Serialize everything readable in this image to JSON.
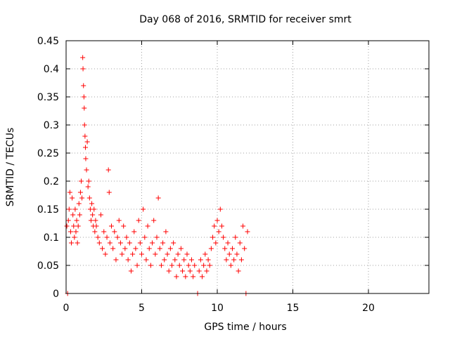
{
  "chart_data": {
    "type": "scatter",
    "title": "Day 068 of 2016, SRMTID for receiver smrt",
    "xlabel": "GPS time / hours",
    "ylabel": "SRMTID / TECUs",
    "xlim": [
      0,
      24
    ],
    "ylim": [
      0,
      0.45
    ],
    "xticks": [
      0,
      5,
      10,
      15,
      20
    ],
    "yticks": [
      0,
      0.05,
      0.1,
      0.15,
      0.2,
      0.25,
      0.3,
      0.35,
      0.4,
      0.45
    ],
    "xtick_labels": [
      "0",
      "5",
      "10",
      "15",
      "20"
    ],
    "ytick_labels": [
      "0",
      "0.05",
      "0.1",
      "0.15",
      "0.2",
      "0.25",
      "0.3",
      "0.35",
      "0.4",
      "0.45"
    ],
    "grid": true,
    "marker": "plus",
    "color": "#ff0000",
    "series": [
      {
        "name": "SRMTID",
        "points": [
          [
            0.05,
            0.12
          ],
          [
            0.1,
            0.0
          ],
          [
            0.15,
            0.13
          ],
          [
            0.2,
            0.15
          ],
          [
            0.25,
            0.18
          ],
          [
            0.3,
            0.11
          ],
          [
            0.35,
            0.09
          ],
          [
            0.4,
            0.17
          ],
          [
            0.45,
            0.14
          ],
          [
            0.5,
            0.12
          ],
          [
            0.55,
            0.1
          ],
          [
            0.6,
            0.15
          ],
          [
            0.65,
            0.11
          ],
          [
            0.7,
            0.13
          ],
          [
            0.75,
            0.09
          ],
          [
            0.8,
            0.12
          ],
          [
            0.85,
            0.16
          ],
          [
            0.9,
            0.14
          ],
          [
            0.95,
            0.18
          ],
          [
            1.0,
            0.2
          ],
          [
            1.05,
            0.17
          ],
          [
            1.1,
            0.42
          ],
          [
            1.12,
            0.4
          ],
          [
            1.15,
            0.37
          ],
          [
            1.18,
            0.35
          ],
          [
            1.2,
            0.33
          ],
          [
            1.22,
            0.3
          ],
          [
            1.25,
            0.28
          ],
          [
            1.28,
            0.26
          ],
          [
            1.3,
            0.24
          ],
          [
            1.35,
            0.22
          ],
          [
            1.4,
            0.27
          ],
          [
            1.45,
            0.19
          ],
          [
            1.5,
            0.2
          ],
          [
            1.55,
            0.17
          ],
          [
            1.6,
            0.15
          ],
          [
            1.65,
            0.13
          ],
          [
            1.7,
            0.16
          ],
          [
            1.75,
            0.14
          ],
          [
            1.8,
            0.12
          ],
          [
            1.85,
            0.15
          ],
          [
            1.9,
            0.11
          ],
          [
            1.95,
            0.13
          ],
          [
            2.0,
            0.12
          ],
          [
            2.1,
            0.1
          ],
          [
            2.2,
            0.09
          ],
          [
            2.3,
            0.14
          ],
          [
            2.4,
            0.08
          ],
          [
            2.5,
            0.11
          ],
          [
            2.6,
            0.07
          ],
          [
            2.7,
            0.1
          ],
          [
            2.8,
            0.22
          ],
          [
            2.85,
            0.18
          ],
          [
            2.9,
            0.09
          ],
          [
            3.0,
            0.12
          ],
          [
            3.1,
            0.08
          ],
          [
            3.2,
            0.11
          ],
          [
            3.3,
            0.06
          ],
          [
            3.4,
            0.1
          ],
          [
            3.5,
            0.13
          ],
          [
            3.6,
            0.09
          ],
          [
            3.7,
            0.07
          ],
          [
            3.8,
            0.12
          ],
          [
            3.9,
            0.08
          ],
          [
            4.0,
            0.1
          ],
          [
            4.1,
            0.06
          ],
          [
            4.2,
            0.09
          ],
          [
            4.3,
            0.04
          ],
          [
            4.4,
            0.07
          ],
          [
            4.5,
            0.11
          ],
          [
            4.6,
            0.08
          ],
          [
            4.7,
            0.05
          ],
          [
            4.8,
            0.13
          ],
          [
            4.9,
            0.09
          ],
          [
            5.0,
            0.07
          ],
          [
            5.1,
            0.15
          ],
          [
            5.2,
            0.1
          ],
          [
            5.3,
            0.06
          ],
          [
            5.4,
            0.12
          ],
          [
            5.5,
            0.08
          ],
          [
            5.6,
            0.05
          ],
          [
            5.7,
            0.09
          ],
          [
            5.8,
            0.13
          ],
          [
            5.9,
            0.07
          ],
          [
            6.0,
            0.1
          ],
          [
            6.1,
            0.17
          ],
          [
            6.2,
            0.08
          ],
          [
            6.3,
            0.05
          ],
          [
            6.4,
            0.09
          ],
          [
            6.5,
            0.06
          ],
          [
            6.6,
            0.11
          ],
          [
            6.7,
            0.07
          ],
          [
            6.8,
            0.04
          ],
          [
            6.9,
            0.08
          ],
          [
            7.0,
            0.05
          ],
          [
            7.1,
            0.09
          ],
          [
            7.2,
            0.06
          ],
          [
            7.3,
            0.03
          ],
          [
            7.4,
            0.07
          ],
          [
            7.5,
            0.05
          ],
          [
            7.6,
            0.08
          ],
          [
            7.7,
            0.04
          ],
          [
            7.8,
            0.06
          ],
          [
            7.9,
            0.03
          ],
          [
            8.0,
            0.07
          ],
          [
            8.1,
            0.05
          ],
          [
            8.2,
            0.04
          ],
          [
            8.3,
            0.06
          ],
          [
            8.4,
            0.03
          ],
          [
            8.5,
            0.05
          ],
          [
            8.7,
            0.0
          ],
          [
            8.8,
            0.04
          ],
          [
            8.9,
            0.06
          ],
          [
            9.0,
            0.03
          ],
          [
            9.1,
            0.05
          ],
          [
            9.2,
            0.07
          ],
          [
            9.3,
            0.04
          ],
          [
            9.4,
            0.06
          ],
          [
            9.5,
            0.05
          ],
          [
            9.6,
            0.08
          ],
          [
            9.7,
            0.1
          ],
          [
            9.8,
            0.12
          ],
          [
            9.9,
            0.09
          ],
          [
            10.0,
            0.13
          ],
          [
            10.1,
            0.11
          ],
          [
            10.2,
            0.15
          ],
          [
            10.3,
            0.12
          ],
          [
            10.4,
            0.1
          ],
          [
            10.5,
            0.08
          ],
          [
            10.6,
            0.06
          ],
          [
            10.7,
            0.09
          ],
          [
            10.8,
            0.07
          ],
          [
            10.9,
            0.05
          ],
          [
            11.0,
            0.08
          ],
          [
            11.1,
            0.06
          ],
          [
            11.2,
            0.1
          ],
          [
            11.3,
            0.07
          ],
          [
            11.4,
            0.04
          ],
          [
            11.5,
            0.09
          ],
          [
            11.6,
            0.06
          ],
          [
            11.7,
            0.12
          ],
          [
            11.8,
            0.08
          ],
          [
            11.9,
            0.0
          ],
          [
            12.0,
            0.11
          ]
        ]
      }
    ]
  }
}
